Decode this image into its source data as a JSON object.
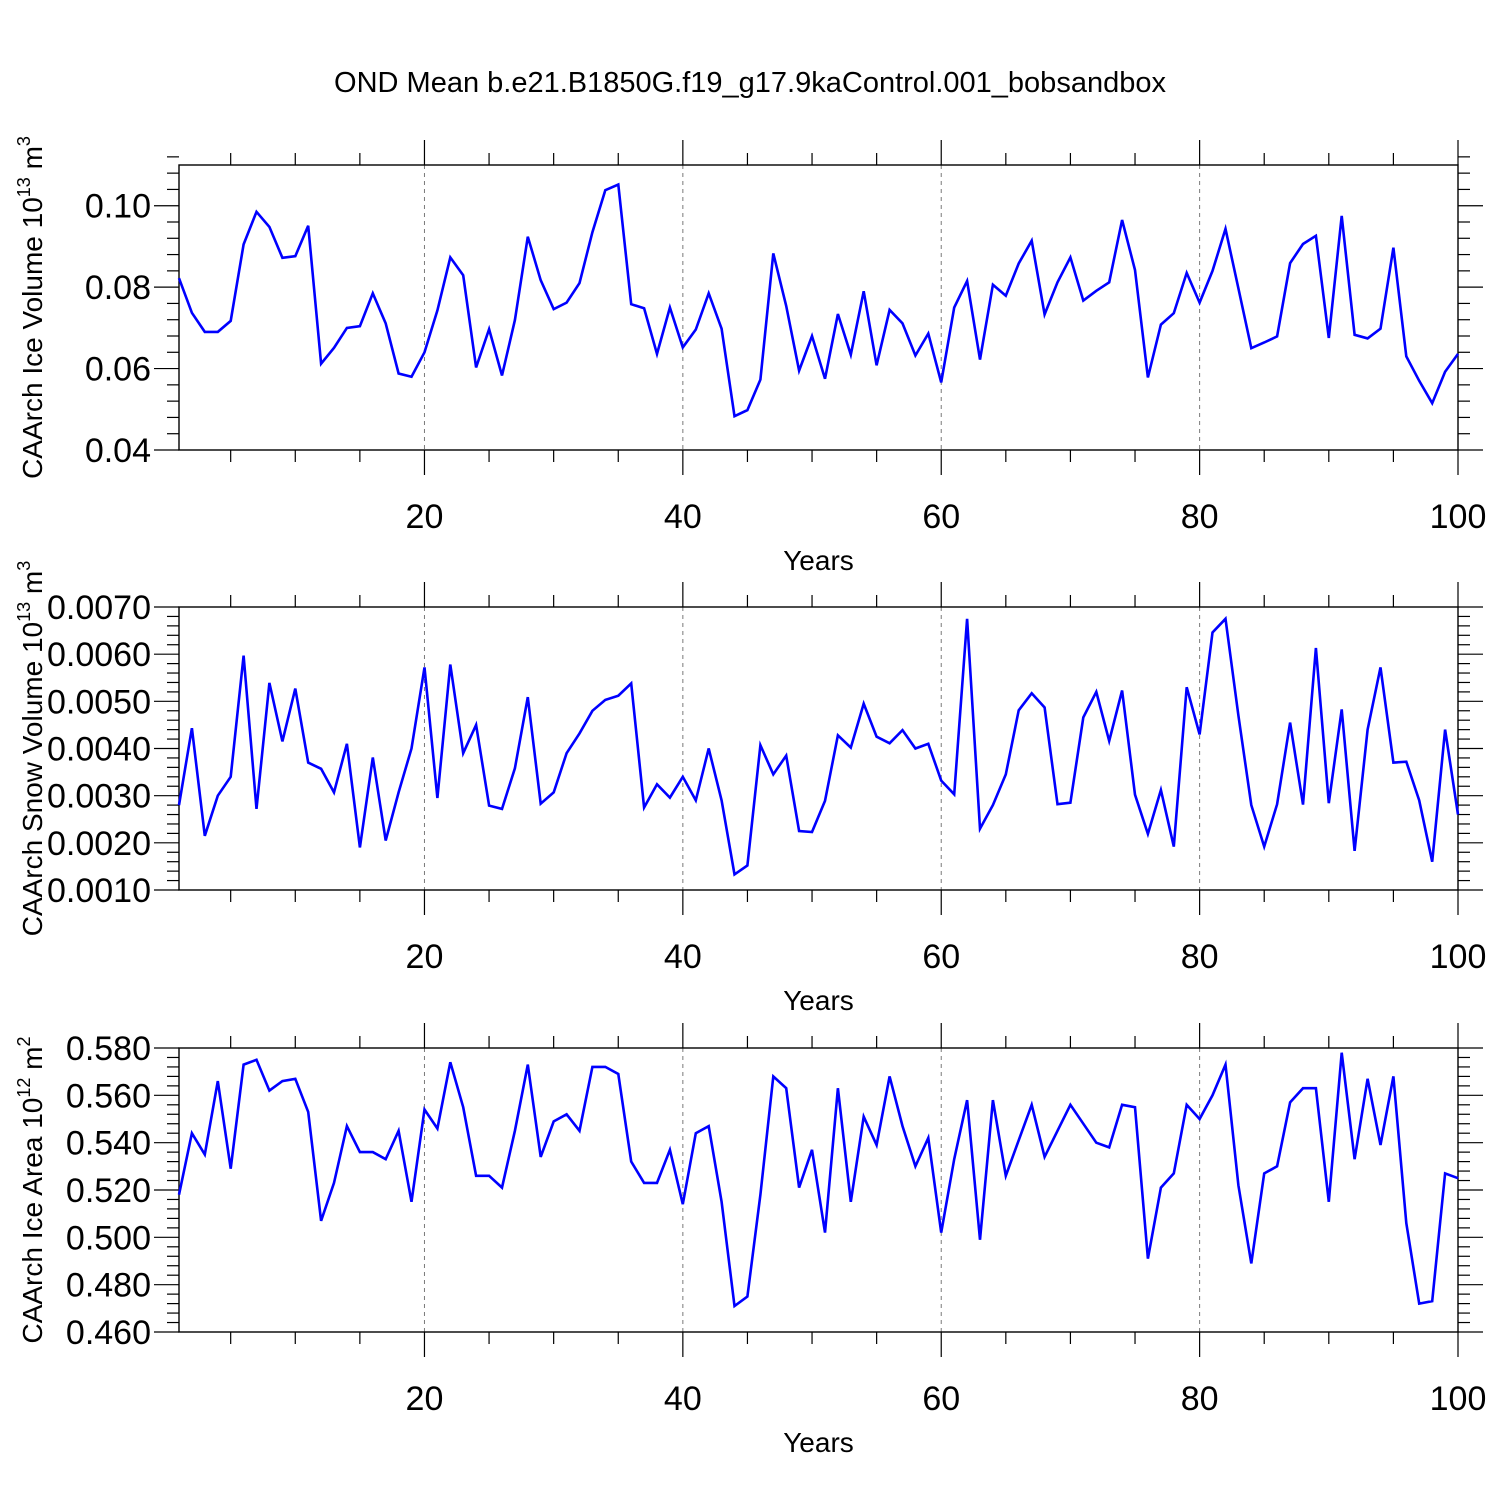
{
  "title": "OND Mean b.e21.B1850G.f19_g17.9kaControl.001_bobsandbox",
  "chart_data": [
    {
      "type": "line",
      "title": "",
      "xlabel": "Years",
      "ylabel": "CAArch Ice Volume 10",
      "ylabel_exp": "13",
      "ylabel_unit": " m",
      "ylabel_unit_exp": "3",
      "xlim": [
        1,
        100
      ],
      "ylim": [
        0.04,
        0.11
      ],
      "xticks": [
        20,
        40,
        60,
        80,
        100
      ],
      "xtick_labels": [
        "20",
        "40",
        "60",
        "80",
        "100"
      ],
      "yticks": [
        0.04,
        0.06,
        0.08,
        0.1
      ],
      "ytick_labels": [
        "0.04",
        "0.06",
        "0.08",
        "0.10"
      ],
      "grid": "vertical dashed at x ticks",
      "series": [
        {
          "name": "CAArch Ice Volume",
          "color": "#0000ff",
          "values": [
            0.0822,
            0.0737,
            0.069,
            0.069,
            0.0717,
            0.0905,
            0.0985,
            0.0948,
            0.0872,
            0.0876,
            0.0951,
            0.0612,
            0.0651,
            0.07,
            0.0704,
            0.0785,
            0.0711,
            0.0588,
            0.058,
            0.064,
            0.0743,
            0.0873,
            0.0829,
            0.0603,
            0.0697,
            0.0583,
            0.0719,
            0.0924,
            0.0817,
            0.0746,
            0.0762,
            0.081,
            0.0935,
            0.1038,
            0.1052,
            0.0758,
            0.0748,
            0.0636,
            0.075,
            0.0652,
            0.0696,
            0.0785,
            0.0698,
            0.0483,
            0.0498,
            0.0573,
            0.0883,
            0.0754,
            0.0595,
            0.068,
            0.0575,
            0.0734,
            0.0634,
            0.079,
            0.0608,
            0.0744,
            0.0711,
            0.0632,
            0.0686,
            0.0566,
            0.075,
            0.0815,
            0.0622,
            0.0806,
            0.0779,
            0.0858,
            0.0914,
            0.0733,
            0.0812,
            0.0873,
            0.0767,
            0.0791,
            0.0812,
            0.0965,
            0.0842,
            0.0578,
            0.0708,
            0.0736,
            0.0835,
            0.0762,
            0.084,
            0.0943,
            0.0797,
            0.065,
            0.0664,
            0.0679,
            0.0859,
            0.0906,
            0.0926,
            0.0675,
            0.0975,
            0.0683,
            0.0674,
            0.0698,
            0.0897,
            0.063,
            0.057,
            0.0515,
            0.0592,
            0.0636
          ]
        }
      ]
    },
    {
      "type": "line",
      "title": "",
      "xlabel": "Years",
      "ylabel": "CAArch Snow Volume 10",
      "ylabel_exp": "13",
      "ylabel_unit": " m",
      "ylabel_unit_exp": "3",
      "xlim": [
        1,
        100
      ],
      "ylim": [
        0.001,
        0.007
      ],
      "xticks": [
        20,
        40,
        60,
        80,
        100
      ],
      "xtick_labels": [
        "20",
        "40",
        "60",
        "80",
        "100"
      ],
      "yticks": [
        0.001,
        0.002,
        0.003,
        0.004,
        0.005,
        0.006,
        0.007
      ],
      "ytick_labels": [
        "0.0010",
        "0.0020",
        "0.0030",
        "0.0040",
        "0.0050",
        "0.0060",
        "0.0070"
      ],
      "grid": "vertical dashed at x ticks",
      "series": [
        {
          "name": "CAArch Snow Volume",
          "color": "#0000ff",
          "values": [
            0.0028,
            0.00443,
            0.00215,
            0.003,
            0.0034,
            0.00597,
            0.00272,
            0.00539,
            0.00415,
            0.00527,
            0.0037,
            0.00357,
            0.00307,
            0.0041,
            0.0019,
            0.00381,
            0.00205,
            0.00307,
            0.004,
            0.00572,
            0.00295,
            0.00578,
            0.0039,
            0.0045,
            0.00279,
            0.00272,
            0.00358,
            0.00509,
            0.00283,
            0.00307,
            0.0039,
            0.00432,
            0.0048,
            0.00503,
            0.00512,
            0.00538,
            0.00275,
            0.00324,
            0.00296,
            0.0034,
            0.0029,
            0.004,
            0.0029,
            0.00133,
            0.00152,
            0.00407,
            0.00345,
            0.00385,
            0.00225,
            0.00223,
            0.00289,
            0.00428,
            0.00402,
            0.00495,
            0.00425,
            0.00411,
            0.00439,
            0.004,
            0.0041,
            0.00332,
            0.00303,
            0.00675,
            0.0023,
            0.0028,
            0.00345,
            0.00481,
            0.00517,
            0.00487,
            0.00282,
            0.00285,
            0.00466,
            0.0052,
            0.00416,
            0.00523,
            0.00302,
            0.00219,
            0.00312,
            0.00192,
            0.0053,
            0.0043,
            0.00646,
            0.00675,
            0.0047,
            0.0028,
            0.00192,
            0.00282,
            0.00455,
            0.00281,
            0.00613,
            0.00284,
            0.00483,
            0.00183,
            0.0044,
            0.00572,
            0.0037,
            0.00372,
            0.0029,
            0.0016,
            0.0044,
            0.0026
          ]
        }
      ]
    },
    {
      "type": "line",
      "title": "",
      "xlabel": "Years",
      "ylabel": "CAArch Ice Area 10",
      "ylabel_exp": "12",
      "ylabel_unit": " m",
      "ylabel_unit_exp": "2",
      "xlim": [
        1,
        100
      ],
      "ylim": [
        0.46,
        0.58
      ],
      "xticks": [
        20,
        40,
        60,
        80,
        100
      ],
      "xtick_labels": [
        "20",
        "40",
        "60",
        "80",
        "100"
      ],
      "yticks": [
        0.46,
        0.48,
        0.5,
        0.52,
        0.54,
        0.56,
        0.58
      ],
      "ytick_labels": [
        "0.460",
        "0.480",
        "0.500",
        "0.520",
        "0.540",
        "0.560",
        "0.580"
      ],
      "grid": "vertical dashed at x ticks",
      "series": [
        {
          "name": "CAArch Ice Area",
          "color": "#0000ff",
          "values": [
            0.518,
            0.544,
            0.535,
            0.566,
            0.529,
            0.573,
            0.575,
            0.562,
            0.566,
            0.567,
            0.553,
            0.507,
            0.523,
            0.547,
            0.536,
            0.536,
            0.533,
            0.545,
            0.515,
            0.554,
            0.546,
            0.574,
            0.555,
            0.526,
            0.526,
            0.521,
            0.545,
            0.573,
            0.534,
            0.549,
            0.552,
            0.545,
            0.572,
            0.572,
            0.569,
            0.532,
            0.523,
            0.523,
            0.537,
            0.514,
            0.544,
            0.547,
            0.515,
            0.471,
            0.475,
            0.518,
            0.568,
            0.563,
            0.521,
            0.537,
            0.502,
            0.563,
            0.515,
            0.551,
            0.539,
            0.568,
            0.547,
            0.53,
            0.542,
            0.502,
            0.533,
            0.558,
            0.499,
            0.558,
            0.526,
            0.541,
            0.556,
            0.534,
            0.545,
            0.556,
            0.548,
            0.54,
            0.538,
            0.556,
            0.555,
            0.491,
            0.521,
            0.527,
            0.556,
            0.55,
            0.56,
            0.573,
            0.522,
            0.489,
            0.527,
            0.53,
            0.557,
            0.563,
            0.563,
            0.515,
            0.578,
            0.533,
            0.567,
            0.539,
            0.568,
            0.506,
            0.472,
            0.473,
            0.527,
            0.525
          ]
        }
      ]
    }
  ]
}
